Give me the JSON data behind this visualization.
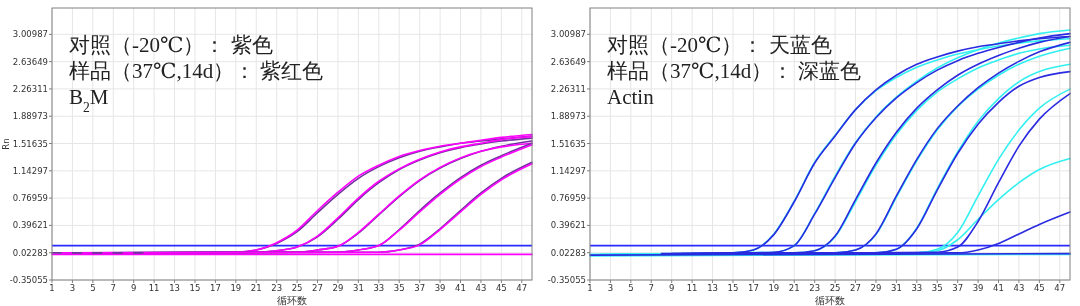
{
  "chart_data": [
    {
      "type": "line",
      "annotations": [
        "对照（-20℃）： 紫色",
        "样品（37℃,14d）： 紫红色",
        "B$_{2}$M"
      ],
      "xlabel": "循环数",
      "ylabel": "Rn",
      "xlim": [
        1,
        48
      ],
      "xticks": [
        1,
        3,
        5,
        7,
        9,
        11,
        13,
        15,
        17,
        19,
        21,
        23,
        25,
        27,
        29,
        31,
        33,
        35,
        37,
        39,
        41,
        43,
        45,
        47
      ],
      "ylim": [
        -0.35055,
        3.37
      ],
      "yticks": [
        -0.35055,
        0.02283,
        0.39621,
        0.76959,
        1.14297,
        1.51635,
        1.88973,
        2.26311,
        2.63649,
        3.00987
      ],
      "grid": true,
      "marker": "none",
      "line_style": "solid",
      "ref_lines": [
        {
          "axis": "y",
          "value": 0.12,
          "color": "#2a2aff"
        }
      ],
      "series": [
        {
          "color": "#ff00ff",
          "x": [
            1,
            48
          ],
          "values": [
            0.0,
            0.0
          ]
        },
        {
          "color": "#7030a0",
          "x": [
            1,
            19,
            21,
            23,
            25,
            27,
            29,
            31,
            33,
            35,
            37,
            39,
            41,
            43,
            45,
            48
          ],
          "values": [
            0.02,
            0.03,
            0.06,
            0.15,
            0.31,
            0.57,
            0.82,
            1.04,
            1.2,
            1.32,
            1.41,
            1.47,
            1.52,
            1.55,
            1.58,
            1.62
          ]
        },
        {
          "color": "#ff00ff",
          "x": [
            2,
            19,
            21,
            23,
            25,
            27,
            29,
            31,
            33,
            35,
            37,
            39,
            41,
            43,
            45,
            48
          ],
          "values": [
            0.02,
            0.03,
            0.06,
            0.16,
            0.33,
            0.6,
            0.85,
            1.07,
            1.22,
            1.34,
            1.42,
            1.48,
            1.52,
            1.56,
            1.6,
            1.64
          ]
        },
        {
          "color": "#7030a0",
          "x": [
            3,
            21,
            23,
            25,
            27,
            29,
            31,
            33,
            35,
            37,
            39,
            41,
            43,
            45,
            48
          ],
          "values": [
            0.02,
            0.03,
            0.05,
            0.1,
            0.24,
            0.48,
            0.75,
            0.98,
            1.16,
            1.29,
            1.39,
            1.46,
            1.51,
            1.55,
            1.59
          ]
        },
        {
          "color": "#ff00ff",
          "x": [
            4,
            21,
            23,
            25,
            27,
            29,
            31,
            33,
            35,
            37,
            39,
            41,
            43,
            45,
            48
          ],
          "values": [
            0.02,
            0.03,
            0.05,
            0.1,
            0.25,
            0.5,
            0.77,
            1.0,
            1.17,
            1.3,
            1.4,
            1.47,
            1.52,
            1.57,
            1.61
          ]
        },
        {
          "color": "#7030a0",
          "x": [
            5,
            25,
            27,
            29,
            31,
            33,
            35,
            37,
            39,
            41,
            43,
            45,
            48
          ],
          "values": [
            0.02,
            0.03,
            0.06,
            0.11,
            0.29,
            0.54,
            0.79,
            1.01,
            1.18,
            1.31,
            1.41,
            1.48,
            1.55
          ]
        },
        {
          "color": "#ff00ff",
          "x": [
            6,
            25,
            27,
            29,
            31,
            33,
            35,
            37,
            39,
            41,
            43,
            45,
            48
          ],
          "values": [
            0.02,
            0.03,
            0.06,
            0.11,
            0.3,
            0.55,
            0.8,
            1.02,
            1.19,
            1.32,
            1.41,
            1.47,
            1.52
          ]
        },
        {
          "color": "#7030a0",
          "x": [
            7,
            29,
            31,
            33,
            35,
            37,
            39,
            41,
            43,
            45,
            48
          ],
          "values": [
            0.02,
            0.03,
            0.06,
            0.12,
            0.34,
            0.6,
            0.84,
            1.05,
            1.22,
            1.35,
            1.52
          ]
        },
        {
          "color": "#ff00ff",
          "x": [
            8,
            29,
            31,
            33,
            35,
            37,
            39,
            41,
            43,
            45,
            48
          ],
          "values": [
            0.02,
            0.03,
            0.06,
            0.12,
            0.33,
            0.58,
            0.82,
            1.03,
            1.2,
            1.33,
            1.5
          ]
        },
        {
          "color": "#7030a0",
          "x": [
            9,
            33,
            35,
            37,
            39,
            41,
            43,
            45,
            48
          ],
          "values": [
            0.02,
            0.03,
            0.06,
            0.14,
            0.35,
            0.6,
            0.84,
            1.04,
            1.26
          ]
        },
        {
          "color": "#ff00ff",
          "x": [
            10,
            33,
            35,
            37,
            39,
            41,
            43,
            45,
            48
          ],
          "values": [
            0.02,
            0.03,
            0.06,
            0.13,
            0.34,
            0.58,
            0.82,
            1.02,
            1.24
          ]
        }
      ]
    },
    {
      "type": "line",
      "annotations": [
        "对照（-20℃）： 天蓝色",
        "样品（37℃,14d）： 深蓝色",
        "Actin"
      ],
      "xlabel": "循环数",
      "xlim": [
        1,
        48
      ],
      "xticks": [
        1,
        3,
        5,
        7,
        9,
        11,
        13,
        15,
        17,
        19,
        21,
        23,
        25,
        27,
        29,
        31,
        33,
        35,
        37,
        39,
        41,
        43,
        45,
        47
      ],
      "ylim": [
        -0.35055,
        3.37
      ],
      "yticks": [
        -0.35055,
        0.02283,
        0.39621,
        0.76959,
        1.14297,
        1.51635,
        1.88973,
        2.26311,
        2.63649,
        3.00987
      ],
      "grid": true,
      "marker": "none",
      "line_style": "solid",
      "ref_lines": [
        {
          "axis": "y",
          "value": 0.12,
          "color": "#2a2aff"
        }
      ],
      "series": [
        {
          "color": "#33f0f0",
          "x": [
            1,
            48
          ],
          "values": [
            -0.02,
            0.0
          ]
        },
        {
          "color": "#33f0f0",
          "x": [
            1,
            15,
            17,
            19,
            21,
            23,
            25,
            27,
            29,
            31,
            33,
            35,
            37,
            39,
            41,
            43,
            45,
            48
          ],
          "values": [
            0.0,
            0.02,
            0.06,
            0.28,
            0.73,
            1.26,
            1.63,
            1.98,
            2.24,
            2.42,
            2.56,
            2.66,
            2.74,
            2.8,
            2.85,
            2.89,
            2.92,
            2.95
          ]
        },
        {
          "color": "#33f0f0",
          "x": [
            2,
            19,
            21,
            23,
            25,
            27,
            29,
            31,
            33,
            35,
            37,
            39,
            41,
            43,
            45,
            48
          ],
          "values": [
            0.0,
            0.03,
            0.12,
            0.56,
            1.07,
            1.53,
            1.88,
            2.15,
            2.37,
            2.55,
            2.69,
            2.8,
            2.89,
            2.96,
            3.02,
            3.07
          ]
        },
        {
          "color": "#33f0f0",
          "x": [
            3,
            21,
            23,
            25,
            27,
            29,
            31,
            33,
            35,
            37,
            39,
            41,
            43,
            45,
            48
          ],
          "values": [
            0.0,
            0.02,
            0.05,
            0.24,
            0.72,
            1.22,
            1.64,
            1.97,
            2.22,
            2.4,
            2.55,
            2.66,
            2.75,
            2.81,
            2.86
          ]
        },
        {
          "color": "#33f0f0",
          "x": [
            4,
            25,
            27,
            29,
            31,
            33,
            35,
            37,
            39,
            41,
            43,
            45,
            48
          ],
          "values": [
            0.0,
            0.02,
            0.06,
            0.27,
            0.78,
            1.28,
            1.7,
            2.02,
            2.26,
            2.45,
            2.6,
            2.71,
            2.82
          ]
        },
        {
          "color": "#33f0f0",
          "x": [
            5,
            29,
            31,
            33,
            35,
            37,
            39,
            41,
            43,
            45,
            48
          ],
          "values": [
            0.0,
            0.02,
            0.07,
            0.36,
            0.9,
            1.4,
            1.82,
            2.13,
            2.36,
            2.5,
            2.6
          ]
        },
        {
          "color": "#33f0f0",
          "x": [
            6,
            33,
            35,
            37,
            39,
            41,
            43,
            45,
            48
          ],
          "values": [
            0.0,
            0.02,
            0.07,
            0.3,
            0.8,
            1.3,
            1.7,
            2.0,
            2.26
          ]
        },
        {
          "color": "#33f0f0",
          "x": [
            7,
            33,
            35,
            37,
            39,
            41,
            43,
            45,
            48
          ],
          "values": [
            0.0,
            0.02,
            0.05,
            0.2,
            0.48,
            0.75,
            0.98,
            1.16,
            1.31
          ]
        },
        {
          "color": "#2a2ae0",
          "x": [
            1,
            48
          ],
          "values": [
            -0.01,
            0.01
          ]
        },
        {
          "color": "#2a2ae0",
          "x": [
            8,
            15,
            17,
            19,
            21,
            23,
            25,
            27,
            29,
            31,
            33,
            35,
            37,
            39,
            41,
            43,
            45,
            48
          ],
          "values": [
            0.01,
            0.02,
            0.06,
            0.27,
            0.72,
            1.25,
            1.62,
            1.98,
            2.25,
            2.45,
            2.6,
            2.7,
            2.78,
            2.84,
            2.88,
            2.92,
            2.95,
            2.98
          ]
        },
        {
          "color": "#2a2ae0",
          "x": [
            9,
            19,
            21,
            23,
            25,
            27,
            29,
            31,
            33,
            35,
            37,
            39,
            41,
            43,
            45,
            48
          ],
          "values": [
            0.01,
            0.03,
            0.12,
            0.55,
            1.05,
            1.52,
            1.87,
            2.14,
            2.35,
            2.52,
            2.65,
            2.75,
            2.83,
            2.9,
            2.96,
            3.02
          ]
        },
        {
          "color": "#2a2ae0",
          "x": [
            10,
            21,
            23,
            25,
            27,
            29,
            31,
            33,
            35,
            37,
            39,
            41,
            43,
            45,
            48
          ],
          "values": [
            0.01,
            0.02,
            0.05,
            0.25,
            0.75,
            1.25,
            1.67,
            2.0,
            2.25,
            2.45,
            2.6,
            2.72,
            2.82,
            2.9,
            2.98
          ]
        },
        {
          "color": "#2a2ae0",
          "x": [
            11,
            25,
            27,
            29,
            31,
            33,
            35,
            37,
            39,
            41,
            43,
            45,
            48
          ],
          "values": [
            0.01,
            0.02,
            0.06,
            0.28,
            0.8,
            1.3,
            1.72,
            2.03,
            2.28,
            2.48,
            2.64,
            2.77,
            2.9
          ]
        },
        {
          "color": "#2a2ae0",
          "x": [
            12,
            29,
            31,
            33,
            35,
            37,
            39,
            41,
            43,
            45,
            48
          ],
          "values": [
            0.01,
            0.02,
            0.07,
            0.35,
            0.88,
            1.38,
            1.78,
            2.08,
            2.3,
            2.42,
            2.5
          ]
        },
        {
          "color": "#2a2ae0",
          "x": [
            13,
            35,
            37,
            39,
            41,
            43,
            45,
            48
          ],
          "values": [
            0.01,
            0.03,
            0.1,
            0.45,
            0.98,
            1.48,
            1.85,
            2.2
          ]
        },
        {
          "color": "#2a2ae0",
          "x": [
            14,
            37,
            39,
            41,
            43,
            45,
            48
          ],
          "values": [
            0.01,
            0.02,
            0.06,
            0.15,
            0.28,
            0.41,
            0.58
          ]
        }
      ]
    }
  ]
}
